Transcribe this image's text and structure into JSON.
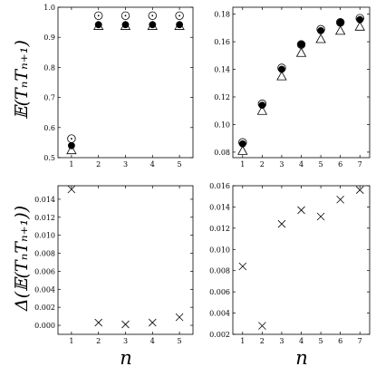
{
  "labels": {
    "ylabel_top": "𝔼(TₙTₙ₊₁)",
    "ylabel_bottom": "Δ(𝔼(TₙTₙ₊₁))",
    "xlabel": "n"
  },
  "chart_data": [
    {
      "type": "scatter",
      "panel": "top-left",
      "xlim": [
        0.5,
        5.5
      ],
      "ylim": [
        0.5,
        1.0
      ],
      "xticks": [
        1,
        2,
        3,
        4,
        5
      ],
      "yticks": [
        0.5,
        0.6,
        0.7,
        0.8,
        0.9,
        1.0
      ],
      "ytick_labels": [
        "0.5",
        "0.6",
        "0.7",
        "0.8",
        "0.9",
        "1.0"
      ],
      "series": [
        {
          "marker": "dotted-circle",
          "x": [
            1,
            2,
            3,
            4,
            5
          ],
          "y": [
            0.563,
            0.972,
            0.972,
            0.972,
            0.972
          ]
        },
        {
          "marker": "filled-circle",
          "x": [
            1,
            2,
            3,
            4,
            5
          ],
          "y": [
            0.54,
            0.942,
            0.942,
            0.942,
            0.942
          ]
        },
        {
          "marker": "triangle",
          "x": [
            1,
            2,
            3,
            4,
            5
          ],
          "y": [
            0.525,
            0.938,
            0.938,
            0.938,
            0.938
          ]
        }
      ]
    },
    {
      "type": "scatter",
      "panel": "top-right",
      "xlim": [
        0.5,
        7.5
      ],
      "ylim": [
        0.076,
        0.185
      ],
      "xticks": [
        1,
        2,
        3,
        4,
        5,
        6,
        7
      ],
      "yticks": [
        0.08,
        0.1,
        0.12,
        0.14,
        0.16,
        0.18
      ],
      "ytick_labels": [
        "0.08",
        "0.10",
        "0.12",
        "0.14",
        "0.16",
        "0.18"
      ],
      "series": [
        {
          "marker": "dotted-circle",
          "x": [
            1,
            2,
            3,
            4,
            5,
            6,
            7
          ],
          "y": [
            0.087,
            0.115,
            0.141,
            0.158,
            0.169,
            0.174,
            0.177
          ]
        },
        {
          "marker": "filled-circle",
          "x": [
            1,
            2,
            3,
            4,
            5,
            6,
            7
          ],
          "y": [
            0.086,
            0.114,
            0.14,
            0.158,
            0.168,
            0.174,
            0.176
          ]
        },
        {
          "marker": "triangle",
          "x": [
            1,
            2,
            3,
            4,
            5,
            6,
            7
          ],
          "y": [
            0.081,
            0.11,
            0.135,
            0.152,
            0.162,
            0.168,
            0.171
          ]
        }
      ]
    },
    {
      "type": "scatter",
      "panel": "bottom-left",
      "xlim": [
        0.5,
        5.5
      ],
      "ylim": [
        -0.001,
        0.0155
      ],
      "xticks": [
        1,
        2,
        3,
        4,
        5
      ],
      "yticks": [
        0.0,
        0.002,
        0.004,
        0.006,
        0.008,
        0.01,
        0.012,
        0.014
      ],
      "ytick_labels": [
        "0.000",
        "0.002",
        "0.004",
        "0.006",
        "0.008",
        "0.010",
        "0.012",
        "0.014"
      ],
      "series": [
        {
          "marker": "cross",
          "x": [
            1,
            2,
            3,
            4,
            5
          ],
          "y": [
            0.0151,
            0.0003,
            0.0001,
            0.0003,
            0.0009
          ]
        }
      ]
    },
    {
      "type": "scatter",
      "panel": "bottom-right",
      "xlim": [
        0.5,
        7.5
      ],
      "ylim": [
        0.002,
        0.016
      ],
      "xticks": [
        1,
        2,
        3,
        4,
        5,
        6,
        7
      ],
      "yticks": [
        0.002,
        0.004,
        0.006,
        0.008,
        0.01,
        0.012,
        0.014,
        0.016
      ],
      "ytick_labels": [
        "0.002",
        "0.004",
        "0.006",
        "0.008",
        "0.010",
        "0.012",
        "0.014",
        "0.016"
      ],
      "series": [
        {
          "marker": "cross",
          "x": [
            1,
            2,
            3,
            4,
            5,
            6,
            7
          ],
          "y": [
            0.0084,
            0.0028,
            0.0124,
            0.0137,
            0.0131,
            0.0147,
            0.0156
          ]
        }
      ]
    }
  ]
}
